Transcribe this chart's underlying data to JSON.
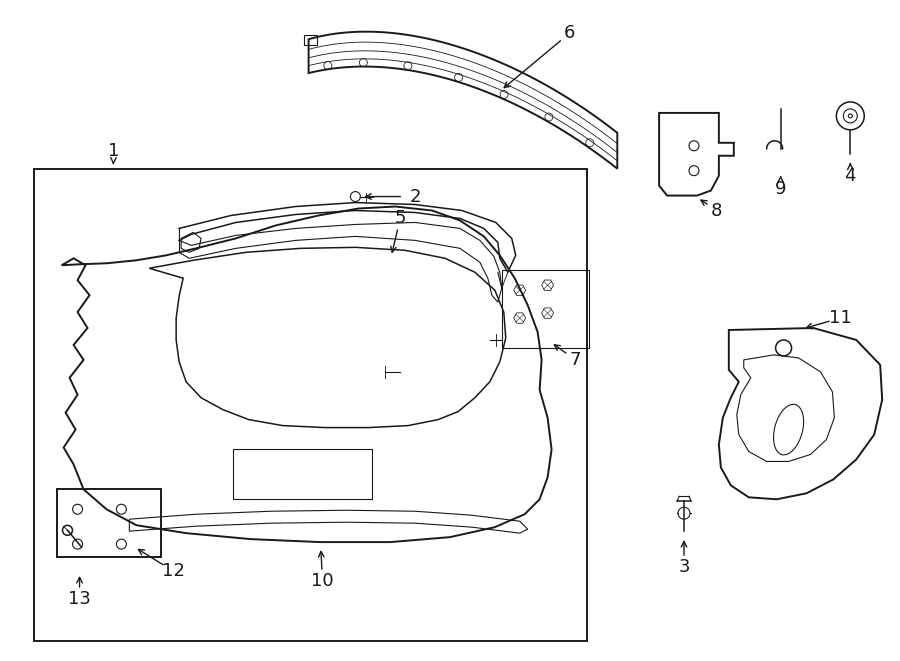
{
  "bg_color": "#ffffff",
  "line_color": "#1a1a1a",
  "lw_main": 1.4,
  "lw_thin": 0.8,
  "lw_med": 1.1,
  "figsize": [
    9.0,
    6.61
  ],
  "dpi": 100
}
